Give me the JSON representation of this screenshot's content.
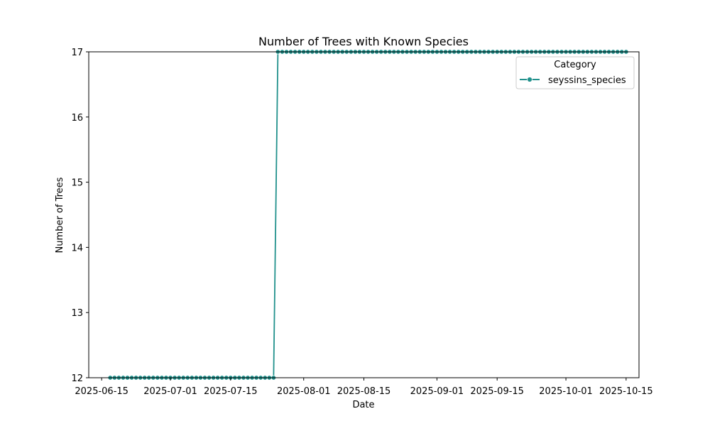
{
  "chart_data": {
    "type": "line",
    "title": "Number of Trees with Known Species",
    "xlabel": "Date",
    "ylabel": "Number of Trees",
    "x_range": [
      "2025-06-12",
      "2025-10-18"
    ],
    "ylim": [
      12,
      17
    ],
    "y_ticks": [
      12,
      13,
      14,
      15,
      16,
      17
    ],
    "x_ticks": [
      "2025-06-15",
      "2025-07-01",
      "2025-07-15",
      "2025-08-01",
      "2025-08-15",
      "2025-09-01",
      "2025-09-15",
      "2025-10-01",
      "2025-10-15"
    ],
    "grid": false,
    "legend": {
      "title": "Category",
      "placement": "top-right"
    },
    "series": [
      {
        "name": "seyssins_species",
        "color": "#21918c",
        "marker": "circle",
        "segments": [
          {
            "start": "2025-06-17",
            "end": "2025-07-25",
            "value": 12
          },
          {
            "start": "2025-07-26",
            "end": "2025-10-15",
            "value": 17
          }
        ]
      }
    ]
  }
}
